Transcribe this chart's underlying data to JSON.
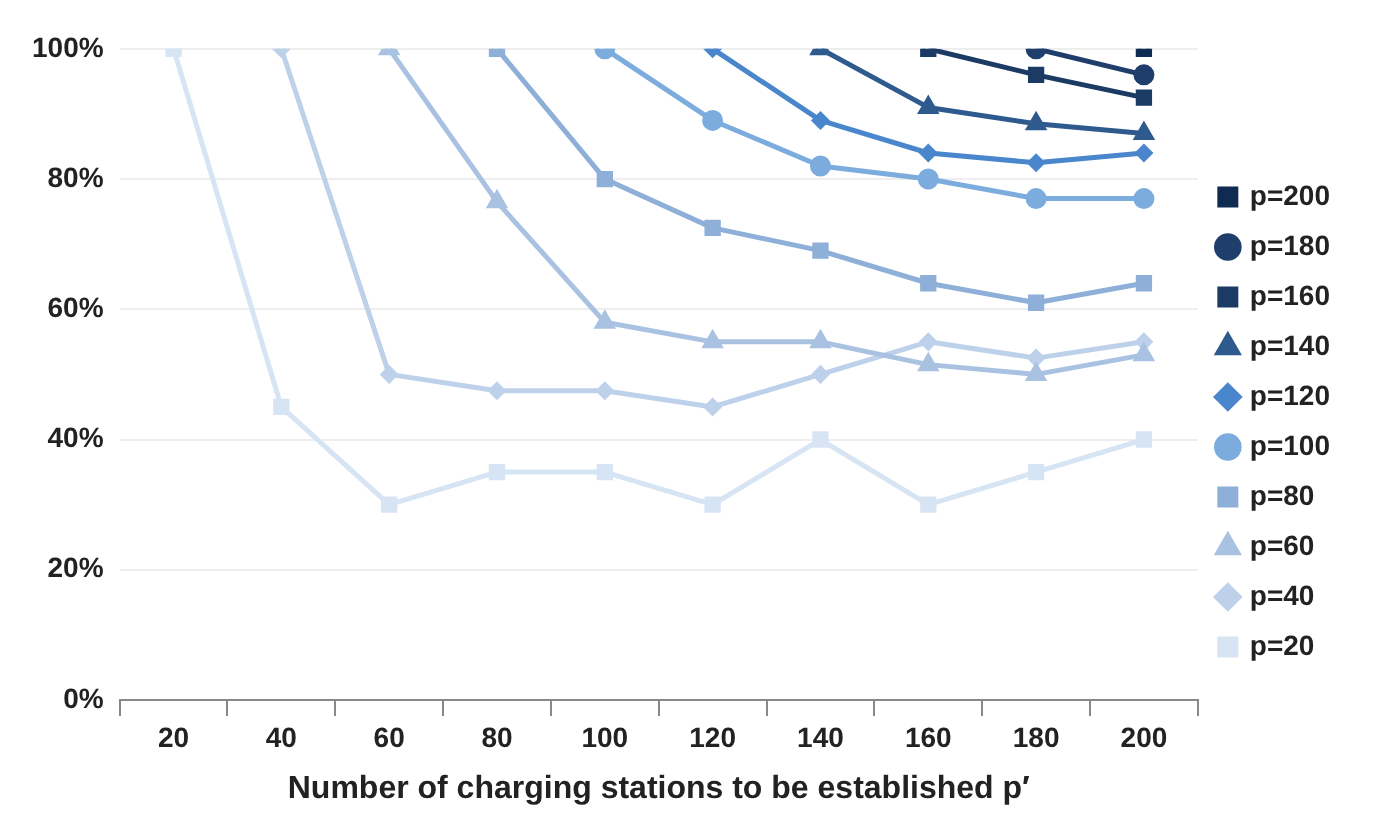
{
  "chart_data": {
    "type": "line",
    "xlabel": "Number of charging stations to be established p′",
    "categories": [
      "20",
      "40",
      "60",
      "80",
      "100",
      "120",
      "140",
      "160",
      "180",
      "200"
    ],
    "series": [
      {
        "name": "p=200",
        "color": "#0f2b52",
        "marker": "square",
        "values": [
          null,
          null,
          null,
          null,
          null,
          null,
          null,
          null,
          null,
          100
        ]
      },
      {
        "name": "p=180",
        "color": "#1f3e6b",
        "marker": "circle",
        "values": [
          null,
          null,
          null,
          null,
          null,
          null,
          null,
          null,
          100,
          96
        ]
      },
      {
        "name": "p=160",
        "color": "#1b3a64",
        "marker": "square",
        "values": [
          null,
          null,
          null,
          null,
          null,
          null,
          null,
          100,
          96,
          92.5
        ]
      },
      {
        "name": "p=140",
        "color": "#2f5a8e",
        "marker": "triangle",
        "values": [
          null,
          null,
          null,
          null,
          null,
          null,
          100,
          91,
          88.5,
          87
        ]
      },
      {
        "name": "p=120",
        "color": "#4a86cc",
        "marker": "diamond",
        "values": [
          null,
          null,
          null,
          null,
          null,
          100,
          89,
          84,
          82.5,
          84
        ]
      },
      {
        "name": "p=100",
        "color": "#7cacde",
        "marker": "circle",
        "values": [
          null,
          null,
          null,
          null,
          100,
          89,
          82,
          80,
          77,
          77
        ]
      },
      {
        "name": "p=80",
        "color": "#8eafd8",
        "marker": "square",
        "values": [
          null,
          null,
          null,
          100,
          80,
          72.5,
          69,
          64,
          61,
          64
        ]
      },
      {
        "name": "p=60",
        "color": "#a9c2e1",
        "marker": "triangle",
        "values": [
          null,
          null,
          100,
          76.5,
          58,
          55,
          55,
          51.5,
          50,
          53
        ]
      },
      {
        "name": "p=40",
        "color": "#bed1ea",
        "marker": "diamond",
        "values": [
          null,
          100,
          50,
          47.5,
          47.5,
          45,
          50,
          55,
          52.5,
          55
        ]
      },
      {
        "name": "p=20",
        "color": "#d7e4f3",
        "marker": "square",
        "values": [
          100,
          45,
          30,
          35,
          35,
          30,
          40,
          30,
          35,
          40
        ]
      }
    ],
    "ylim": [
      0,
      100
    ],
    "yticks": [
      {
        "value": 0,
        "label": "0%"
      },
      {
        "value": 20,
        "label": "20%"
      },
      {
        "value": 40,
        "label": "40%"
      },
      {
        "value": 60,
        "label": "60%"
      },
      {
        "value": 80,
        "label": "80%"
      },
      {
        "value": 100,
        "label": "100%"
      }
    ],
    "grid": "y",
    "legend": "right"
  }
}
